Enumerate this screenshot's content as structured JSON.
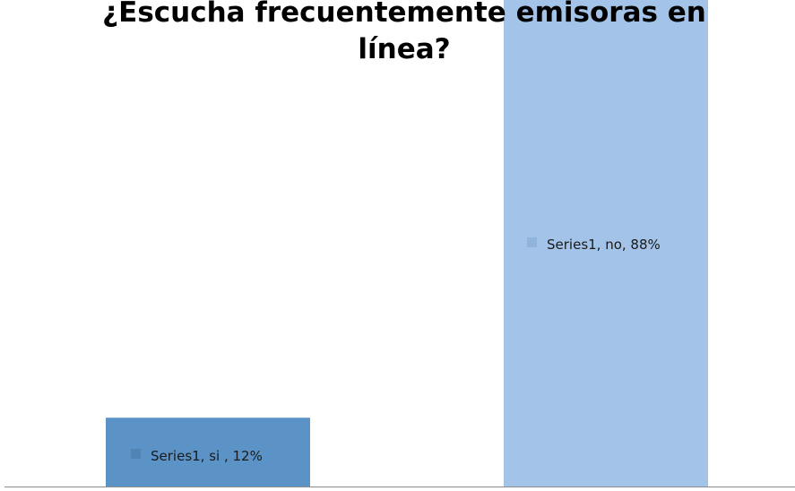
{
  "chart_data": {
    "type": "bar",
    "title_lines": [
      "¿Escucha frecuentemente emisoras en",
      "línea?"
    ],
    "categories": [
      "si",
      "no"
    ],
    "series": [
      {
        "name": "Series1",
        "values": [
          12,
          88
        ],
        "colors": [
          "#5b93c6",
          "#a3c3e8"
        ]
      }
    ],
    "data_labels": [
      "Series1, si , 12%",
      "Series1, no, 88%"
    ],
    "label_marker_colors": [
      "#4f84b5",
      "#90b3dc"
    ],
    "title_color": "#000000",
    "axis_color": "#8c8c8c",
    "ylim": [
      0,
      100
    ],
    "grid": false,
    "legend": "none"
  }
}
